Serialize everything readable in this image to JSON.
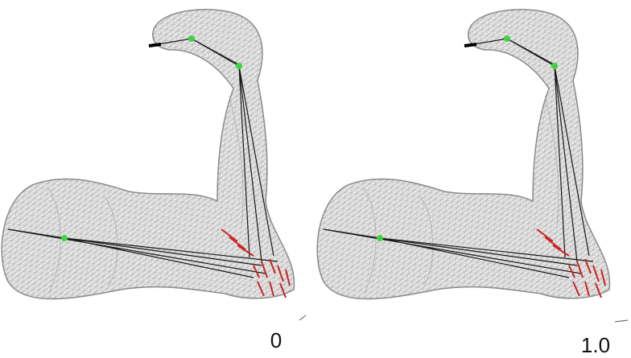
{
  "panels": [
    {
      "label": "0"
    },
    {
      "label": "1.0"
    }
  ]
}
